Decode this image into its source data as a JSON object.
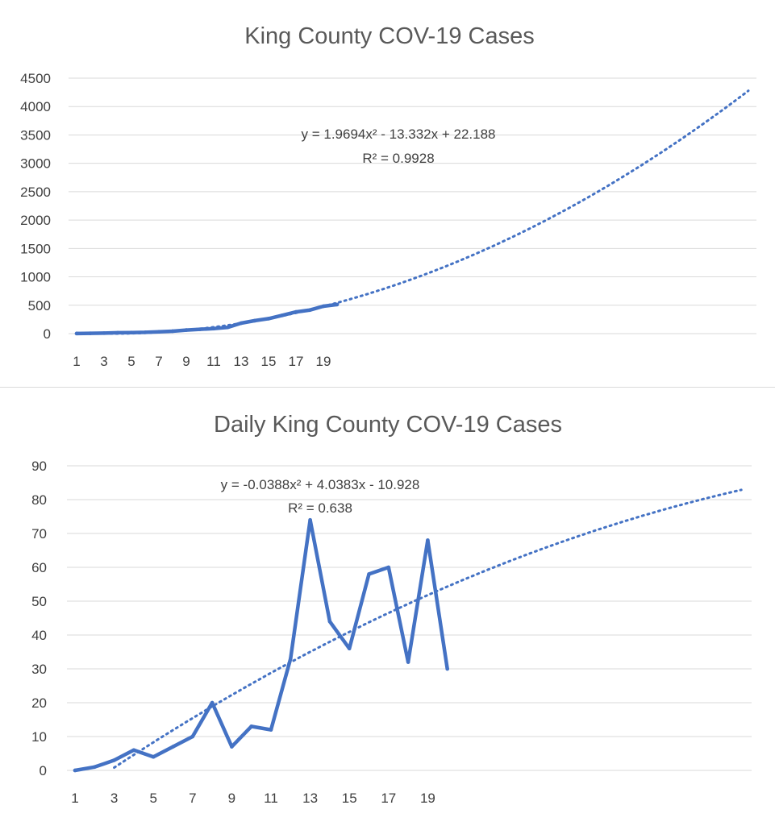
{
  "chart_data": [
    {
      "type": "line",
      "title": "King County COV-19 Cases",
      "xlabel": "",
      "ylabel": "",
      "x_tick_labels": [
        "1",
        "3",
        "5",
        "7",
        "9",
        "11",
        "13",
        "15",
        "17",
        "19"
      ],
      "y_tick_labels": [
        "0",
        "500",
        "1000",
        "1500",
        "2000",
        "2500",
        "3000",
        "3500",
        "4000",
        "4500"
      ],
      "ylim": [
        0,
        4500
      ],
      "xlim": [
        1,
        51
      ],
      "grid": true,
      "x": [
        1,
        2,
        3,
        4,
        5,
        6,
        7,
        8,
        9,
        10,
        11,
        12,
        13,
        14,
        15,
        16,
        17,
        18,
        19,
        20
      ],
      "series": [
        {
          "values": [
            2,
            5,
            9,
            15,
            19,
            23,
            33,
            43,
            63,
            76,
            88,
            110,
            184,
            228,
            264,
            322,
            382,
            414,
            482,
            512
          ],
          "color": "#4472C4"
        }
      ],
      "trendline": {
        "type": "polynomial",
        "coefficients": [
          1.9694,
          -13.332,
          22.188
        ],
        "x_range": [
          1,
          50
        ],
        "equation_line1": "y = 1.9694x² - 13.332x + 22.188",
        "equation_line2": "R² = 0.9928",
        "color": "#4472C4",
        "style": "dotted"
      }
    },
    {
      "type": "line",
      "title": "Daily King County COV-19 Cases",
      "xlabel": "",
      "ylabel": "",
      "x_tick_labels": [
        "1",
        "3",
        "5",
        "7",
        "9",
        "11",
        "13",
        "15",
        "17",
        "19"
      ],
      "y_tick_labels": [
        "0",
        "10",
        "20",
        "30",
        "40",
        "50",
        "60",
        "70",
        "80",
        "90"
      ],
      "ylim": [
        0,
        90
      ],
      "xlim": [
        1,
        36
      ],
      "grid": true,
      "x": [
        1,
        2,
        3,
        4,
        5,
        6,
        7,
        8,
        9,
        10,
        11,
        12,
        13,
        14,
        15,
        16,
        17,
        18,
        19,
        20
      ],
      "series": [
        {
          "values": [
            0,
            1,
            3,
            6,
            4,
            7,
            10,
            20,
            7,
            13,
            12,
            33,
            74,
            44,
            36,
            58,
            60,
            32,
            68,
            30
          ],
          "color": "#4472C4"
        }
      ],
      "trendline": {
        "type": "polynomial",
        "coefficients": [
          -0.0388,
          4.0383,
          -10.928
        ],
        "x_range": [
          3,
          35
        ],
        "equation_line1": "y = -0.0388x² + 4.0383x - 10.928",
        "equation_line2": "R² = 0.638",
        "color": "#4472C4",
        "style": "dotted"
      }
    }
  ]
}
